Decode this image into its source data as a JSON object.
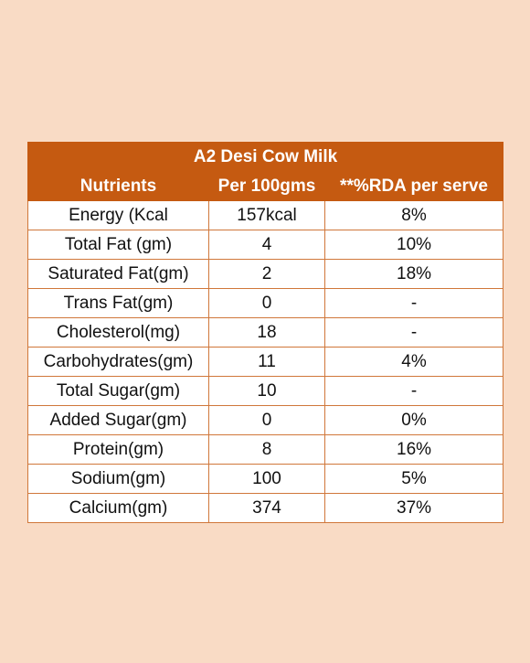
{
  "table": {
    "title": "A2 Desi Cow Milk",
    "headers": [
      "Nutrients",
      "Per 100gms",
      "**%RDA per serve"
    ],
    "rows": [
      {
        "nutrient": "Energy (Kcal",
        "per100": "157kcal",
        "rda": "8%"
      },
      {
        "nutrient": "Total Fat (gm)",
        "per100": "4",
        "rda": "10%"
      },
      {
        "nutrient": "Saturated Fat(gm)",
        "per100": "2",
        "rda": "18%"
      },
      {
        "nutrient": "Trans Fat(gm)",
        "per100": "0",
        "rda": "-"
      },
      {
        "nutrient": "Cholesterol(mg)",
        "per100": "18",
        "rda": "-"
      },
      {
        "nutrient": "Carbohydrates(gm)",
        "per100": "11",
        "rda": "4%"
      },
      {
        "nutrient": "Total Sugar(gm)",
        "per100": "10",
        "rda": "-"
      },
      {
        "nutrient": "Added Sugar(gm)",
        "per100": "0",
        "rda": "0%"
      },
      {
        "nutrient": "Protein(gm)",
        "per100": "8",
        "rda": "16%"
      },
      {
        "nutrient": "Sodium(gm)",
        "per100": "100",
        "rda": "5%"
      },
      {
        "nutrient": "Calcium(gm)",
        "per100": "374",
        "rda": "37%"
      }
    ]
  },
  "colors": {
    "background": "#f9dbc5",
    "header": "#c55a11",
    "border": "#d0773a"
  }
}
